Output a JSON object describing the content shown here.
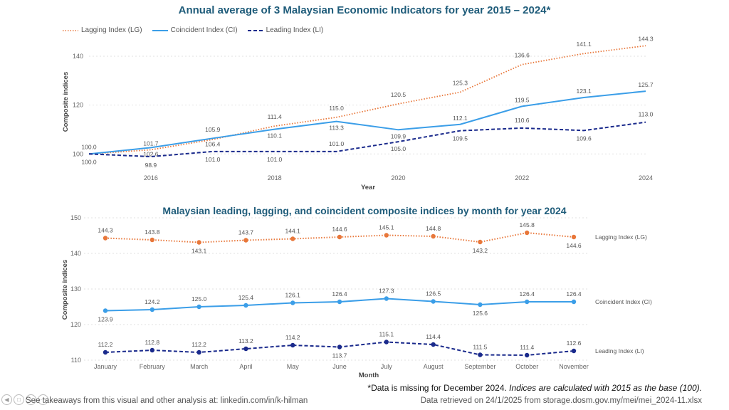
{
  "chart_data": [
    {
      "type": "line",
      "title": "Annual average of 3 Malaysian Economic Indicators for year 2015 – 2024*",
      "xlabel": "Year",
      "ylabel": "Composite indices",
      "x": [
        2015,
        2016,
        2017,
        2018,
        2019,
        2020,
        2021,
        2022,
        2023,
        2024
      ],
      "xticks": [
        2016,
        2018,
        2020,
        2022,
        2024
      ],
      "xlim": [
        2015,
        2024
      ],
      "yticks": [
        100,
        120,
        140
      ],
      "ylim": [
        96,
        147
      ],
      "grid": true,
      "legend": "top-left",
      "series": [
        {
          "name": "Lagging Index (LG)",
          "color": "#e8773a",
          "style": "dotted",
          "values": [
            100.0,
            101.7,
            105.9,
            111.4,
            115.0,
            120.5,
            125.3,
            136.6,
            141.1,
            144.3
          ],
          "labels": [
            "",
            "101.7",
            "105.9",
            "111.4",
            "115.0",
            "120.5",
            "125.3",
            "136.6",
            "141.1",
            "144.3"
          ]
        },
        {
          "name": "Coincident Index (CI)",
          "color": "#3b9ee8",
          "style": "solid",
          "values": [
            100.0,
            102.6,
            106.4,
            110.1,
            113.3,
            109.9,
            112.1,
            119.5,
            123.1,
            125.7
          ],
          "labels": [
            "100.0",
            "102.6",
            "106.4",
            "110.1",
            "113.3",
            "109.9",
            "112.1",
            "119.5",
            "123.1",
            "125.7"
          ]
        },
        {
          "name": "Leading Index (LI)",
          "color": "#1a2a8c",
          "style": "dashed",
          "values": [
            100.0,
            98.9,
            101.0,
            101.0,
            101.0,
            105.0,
            109.5,
            110.6,
            109.6,
            113.0
          ],
          "labels": [
            "100.0",
            "98.9",
            "101.0",
            "101.0",
            "101.0",
            "105.0",
            "109.5",
            "110.6",
            "109.6",
            "113.0"
          ]
        }
      ]
    },
    {
      "type": "line",
      "title": "Malaysian leading, lagging, and coincident composite indices by month for year 2024",
      "xlabel": "Month",
      "ylabel": "Composite indices",
      "categories": [
        "January",
        "February",
        "March",
        "April",
        "May",
        "June",
        "July",
        "August",
        "September",
        "October",
        "November"
      ],
      "yticks": [
        110,
        120,
        130,
        140,
        150
      ],
      "ylim": [
        110,
        150
      ],
      "grid": true,
      "legend": "right, inline labels",
      "series": [
        {
          "name": "Lagging Index (LG)",
          "color": "#e8773a",
          "style": "dotted",
          "values": [
            144.3,
            143.8,
            143.1,
            143.7,
            144.1,
            144.6,
            145.1,
            144.8,
            143.2,
            145.8,
            144.6
          ]
        },
        {
          "name": "Coincident Index (CI)",
          "color": "#3b9ee8",
          "style": "solid",
          "values": [
            123.9,
            124.2,
            125.0,
            125.4,
            126.1,
            126.4,
            127.3,
            126.5,
            125.6,
            126.4,
            126.4
          ]
        },
        {
          "name": "Leading Index (LI)",
          "color": "#1a2a8c",
          "style": "dashed",
          "values": [
            112.2,
            112.8,
            112.2,
            113.2,
            114.2,
            113.7,
            115.1,
            114.4,
            111.5,
            111.4,
            112.6
          ]
        }
      ]
    }
  ],
  "footer": {
    "note_plain": "*Data is missing for December 2024. ",
    "note_italic": "Indices are calculated with 2015 as the base (100).",
    "takeaways": "See takeaways from this visual and other analysis at: linkedin.com/in/k-hilman",
    "source": "Data retrieved on 24/1/2025 from storage.dosm.gov.my/mei/mei_2024-11.xlsx"
  }
}
